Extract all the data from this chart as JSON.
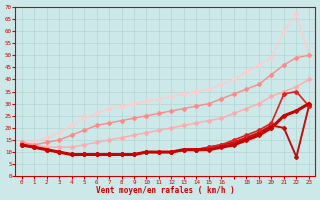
{
  "background_color": "#cce8e8",
  "grid_color": "#aacccc",
  "xlabel": "Vent moyen/en rafales ( km/h )",
  "xlabel_color": "#cc0000",
  "ylim": [
    0,
    70
  ],
  "yticks": [
    0,
    5,
    10,
    15,
    20,
    25,
    30,
    35,
    40,
    45,
    50,
    55,
    60,
    65,
    70
  ],
  "x_positions": [
    0,
    1,
    2,
    3,
    4,
    5,
    6,
    7,
    8,
    9,
    10,
    11,
    12,
    13,
    14,
    15,
    16,
    17,
    18,
    19,
    20,
    21,
    22,
    23
  ],
  "x_labels": [
    "0",
    "1",
    "2",
    "3",
    "4",
    "5",
    "6",
    "7",
    "8",
    "9",
    "10",
    "11",
    "12",
    "13",
    "14",
    "15",
    "16",
    "",
    "18",
    "19",
    "20",
    "21",
    "22",
    "23"
  ],
  "series": [
    {
      "y": [
        13,
        12,
        11,
        10,
        9,
        9,
        9,
        9,
        9,
        9,
        10,
        10,
        10,
        11,
        11,
        11,
        12,
        13,
        15,
        17,
        20,
        25,
        27,
        30
      ],
      "color": "#cc0000",
      "lw": 2.2,
      "ms": 2.0,
      "zorder": 5
    },
    {
      "y": [
        13,
        12,
        11,
        10,
        9,
        9,
        9,
        9,
        9,
        9,
        10,
        10,
        10,
        11,
        11,
        12,
        13,
        14,
        16,
        18,
        21,
        20,
        8,
        29
      ],
      "color": "#bb1111",
      "lw": 1.4,
      "ms": 2.0,
      "zorder": 4
    },
    {
      "y": [
        13,
        12,
        11,
        10,
        9,
        9,
        9,
        9,
        9,
        9,
        10,
        10,
        10,
        11,
        11,
        12,
        13,
        15,
        17,
        19,
        22,
        34,
        35,
        29
      ],
      "color": "#dd2222",
      "lw": 1.2,
      "ms": 2.0,
      "zorder": 4
    },
    {
      "y": [
        14,
        13,
        12,
        12,
        12,
        13,
        14,
        15,
        16,
        17,
        18,
        19,
        20,
        21,
        22,
        23,
        24,
        26,
        28,
        30,
        33,
        35,
        37,
        40
      ],
      "color": "#ffaaaa",
      "lw": 1.0,
      "ms": 2.0,
      "zorder": 3
    },
    {
      "y": [
        14,
        13,
        14,
        15,
        17,
        19,
        21,
        22,
        23,
        24,
        25,
        26,
        27,
        28,
        29,
        30,
        32,
        34,
        36,
        38,
        42,
        46,
        49,
        50
      ],
      "color": "#ff8888",
      "lw": 1.0,
      "ms": 2.0,
      "zorder": 3
    },
    {
      "y": [
        14,
        14,
        16,
        18,
        21,
        24,
        26,
        28,
        29,
        30,
        31,
        32,
        33,
        34,
        35,
        36,
        38,
        40,
        43,
        46,
        49,
        60,
        67,
        50
      ],
      "color": "#ffcccc",
      "lw": 1.0,
      "ms": 2.0,
      "zorder": 2
    }
  ]
}
